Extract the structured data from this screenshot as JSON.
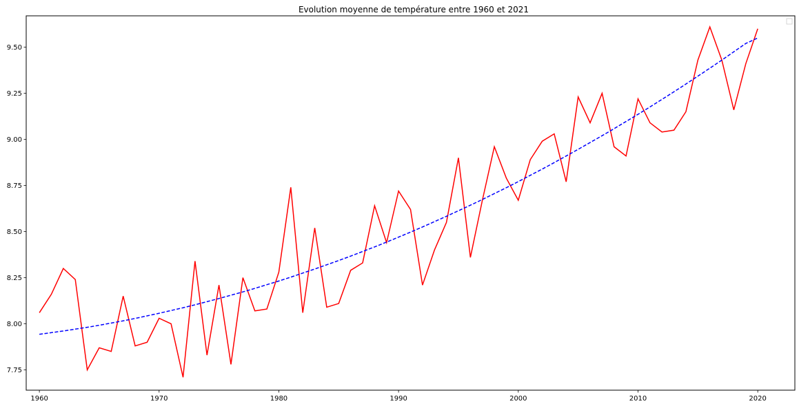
{
  "chart_data": {
    "type": "line",
    "title": "Evolution moyenne de température entre 1960 et 2021",
    "xlabel": "",
    "ylabel": "",
    "xlim": [
      1958.9,
      2023.1
    ],
    "ylim": [
      7.64,
      9.67
    ],
    "x_ticks": [
      1960,
      1970,
      1980,
      1990,
      2000,
      2010,
      2020
    ],
    "y_ticks": [
      7.75,
      8.0,
      8.25,
      8.5,
      8.75,
      9.0,
      9.25,
      9.5
    ],
    "y_tick_labels": [
      "7.75",
      "8.00",
      "8.25",
      "8.50",
      "8.75",
      "9.00",
      "9.25",
      "9.50"
    ],
    "grid": false,
    "legend": "top-right (empty)",
    "x": [
      1960,
      1961,
      1962,
      1963,
      1964,
      1965,
      1966,
      1967,
      1968,
      1969,
      1970,
      1971,
      1972,
      1973,
      1974,
      1975,
      1976,
      1977,
      1978,
      1979,
      1980,
      1981,
      1982,
      1983,
      1984,
      1985,
      1986,
      1987,
      1988,
      1989,
      1990,
      1991,
      1992,
      1993,
      1994,
      1995,
      1996,
      1997,
      1998,
      1999,
      2000,
      2001,
      2002,
      2003,
      2004,
      2005,
      2006,
      2007,
      2008,
      2009,
      2010,
      2011,
      2012,
      2013,
      2014,
      2015,
      2016,
      2017,
      2018,
      2019,
      2020
    ],
    "series": [
      {
        "style": "solid",
        "color": "#ff0000",
        "values": [
          8.06,
          8.16,
          8.3,
          8.24,
          7.75,
          7.87,
          7.85,
          8.15,
          7.88,
          7.9,
          8.03,
          8.0,
          7.71,
          8.34,
          7.83,
          8.21,
          7.78,
          8.25,
          8.07,
          8.08,
          8.28,
          8.74,
          8.06,
          8.52,
          8.09,
          8.11,
          8.29,
          8.33,
          8.64,
          8.44,
          8.72,
          8.62,
          8.21,
          8.4,
          8.55,
          8.9,
          8.36,
          8.67,
          8.96,
          8.79,
          8.67,
          8.89,
          8.99,
          9.03,
          8.77,
          9.23,
          9.09,
          9.25,
          8.96,
          8.91,
          9.22,
          9.09,
          9.04,
          9.05,
          9.15,
          9.43,
          9.61,
          9.43,
          9.16,
          9.41,
          9.6
        ]
      },
      {
        "style": "dashed",
        "color": "#0000ff",
        "values": [
          7.943,
          7.952,
          7.961,
          7.971,
          7.981,
          7.992,
          8.004,
          8.016,
          8.029,
          8.043,
          8.057,
          8.072,
          8.087,
          8.103,
          8.12,
          8.137,
          8.155,
          8.173,
          8.192,
          8.212,
          8.232,
          8.253,
          8.275,
          8.297,
          8.32,
          8.343,
          8.367,
          8.392,
          8.417,
          8.443,
          8.47,
          8.497,
          8.525,
          8.554,
          8.583,
          8.613,
          8.643,
          8.674,
          8.706,
          8.738,
          8.771,
          8.805,
          8.839,
          8.874,
          8.91,
          8.946,
          8.983,
          9.02,
          9.058,
          9.097,
          9.136,
          9.176,
          9.217,
          9.258,
          9.3,
          9.343,
          9.386,
          9.43,
          9.475,
          9.52,
          9.55
        ]
      }
    ]
  }
}
